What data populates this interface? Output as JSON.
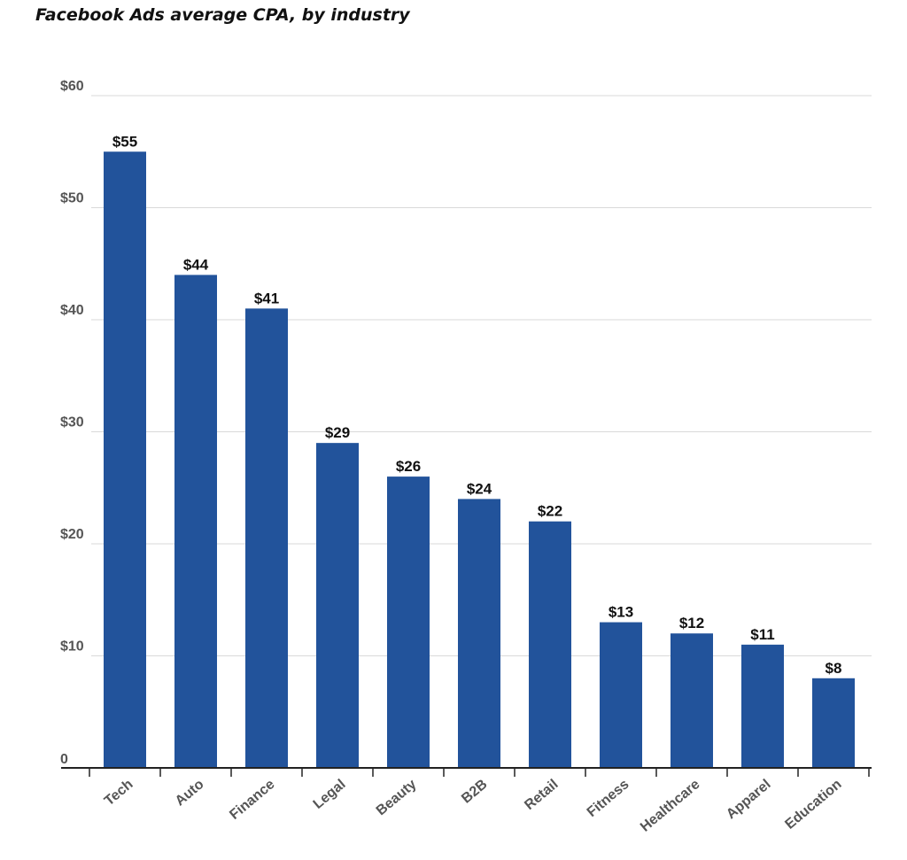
{
  "chart_data": {
    "type": "bar",
    "title": "Facebook Ads average CPA, by industry",
    "categories": [
      "Tech",
      "Auto",
      "Finance",
      "Legal",
      "Beauty",
      "B2B",
      "Retail",
      "Fitness",
      "Healthcare",
      "Apparel",
      "Education"
    ],
    "values": [
      55,
      44,
      41,
      29,
      26,
      24,
      22,
      13,
      12,
      11,
      8
    ],
    "data_labels": [
      "$55",
      "$44",
      "$41",
      "$29",
      "$26",
      "$24",
      "$22",
      "$13",
      "$12",
      "$11",
      "$8"
    ],
    "y_tick_values": [
      0,
      10,
      20,
      30,
      40,
      50,
      60
    ],
    "y_tick_labels": [
      "0",
      "$10",
      "$20",
      "$30",
      "$40",
      "$50",
      "$60"
    ],
    "xlabel": "",
    "ylabel": "",
    "ylim": [
      0,
      60
    ],
    "grid": true,
    "legend": "none",
    "bar_color": "#22539b"
  }
}
